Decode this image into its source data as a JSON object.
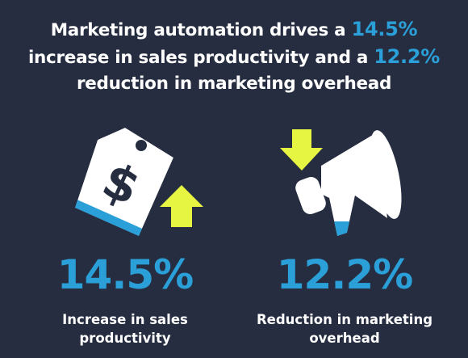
{
  "headline": {
    "parts": [
      "Marketing automation drives a ",
      "14.5%",
      "increase in sales productivity and a ",
      "12.2%",
      "reduction in marketing overhead"
    ]
  },
  "stats": [
    {
      "value": "14.5%",
      "caption": "Increase in sales productivity"
    },
    {
      "value": "12.2%",
      "caption": "Reduction in marketing overhead"
    }
  ]
}
